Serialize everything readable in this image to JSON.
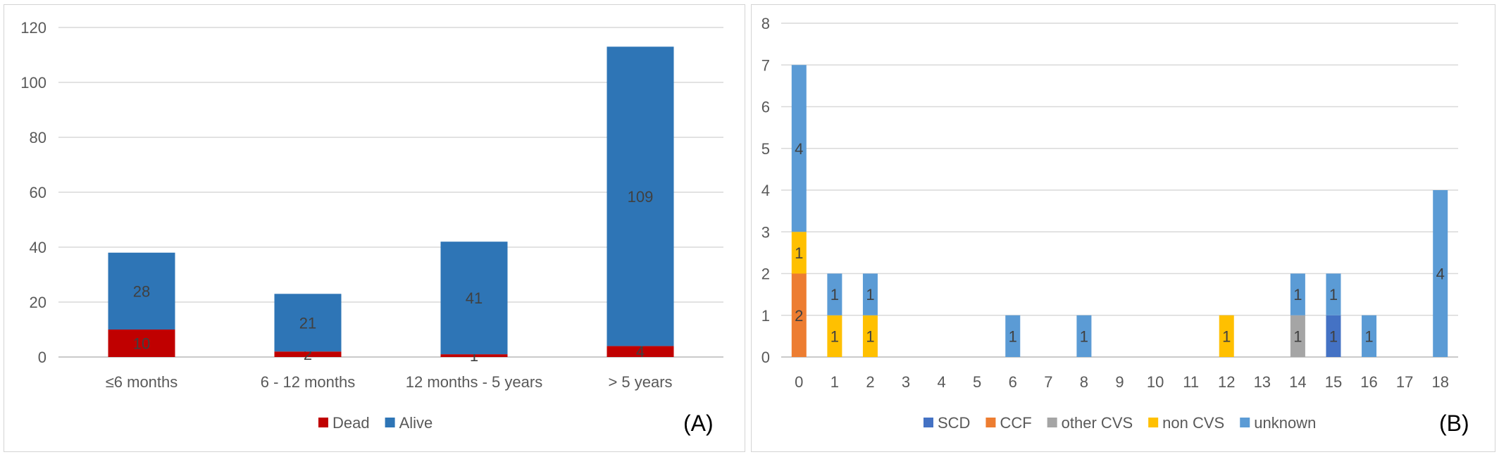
{
  "charts": [
    {
      "panel_label": "(A)",
      "chart_data": {
        "type": "bar",
        "stacked": true,
        "categories": [
          "≤6 months",
          "6 - 12 months",
          "12 months - 5 years",
          "> 5 years"
        ],
        "series": [
          {
            "name": "Dead",
            "color": "#c00000",
            "values": [
              10,
              2,
              1,
              4
            ]
          },
          {
            "name": "Alive",
            "color": "#2e75b6",
            "values": [
              28,
              21,
              41,
              109
            ]
          }
        ],
        "ylim": [
          0,
          120
        ],
        "yticks": [
          0,
          20,
          40,
          60,
          80,
          100,
          120
        ],
        "grid": true,
        "legend": "bottom"
      }
    },
    {
      "panel_label": "(B)",
      "chart_data": {
        "type": "bar",
        "stacked": true,
        "categories": [
          "0",
          "1",
          "2",
          "3",
          "4",
          "5",
          "6",
          "7",
          "8",
          "9",
          "10",
          "11",
          "12",
          "13",
          "14",
          "15",
          "16",
          "17",
          "18"
        ],
        "series": [
          {
            "name": "SCD",
            "color": "#4472c4",
            "values": [
              0,
              0,
              0,
              0,
              0,
              0,
              0,
              0,
              0,
              0,
              0,
              0,
              0,
              0,
              0,
              1,
              0,
              0,
              0
            ]
          },
          {
            "name": "CCF",
            "color": "#ed7d31",
            "values": [
              2,
              0,
              0,
              0,
              0,
              0,
              0,
              0,
              0,
              0,
              0,
              0,
              0,
              0,
              0,
              0,
              0,
              0,
              0
            ]
          },
          {
            "name": "other CVS",
            "color": "#a5a5a5",
            "values": [
              0,
              0,
              0,
              0,
              0,
              0,
              0,
              0,
              0,
              0,
              0,
              0,
              0,
              0,
              1,
              0,
              0,
              0,
              0
            ]
          },
          {
            "name": "non CVS",
            "color": "#ffc000",
            "values": [
              1,
              1,
              1,
              0,
              0,
              0,
              0,
              0,
              0,
              0,
              0,
              0,
              1,
              0,
              0,
              0,
              0,
              0,
              0
            ]
          },
          {
            "name": "unknown",
            "color": "#5b9bd5",
            "values": [
              4,
              1,
              1,
              0,
              0,
              0,
              1,
              0,
              1,
              0,
              0,
              0,
              0,
              0,
              1,
              1,
              1,
              0,
              4
            ]
          }
        ],
        "ylim": [
          0,
          8
        ],
        "yticks": [
          0,
          1,
          2,
          3,
          4,
          5,
          6,
          7,
          8
        ],
        "grid": true,
        "legend": "bottom"
      }
    }
  ]
}
